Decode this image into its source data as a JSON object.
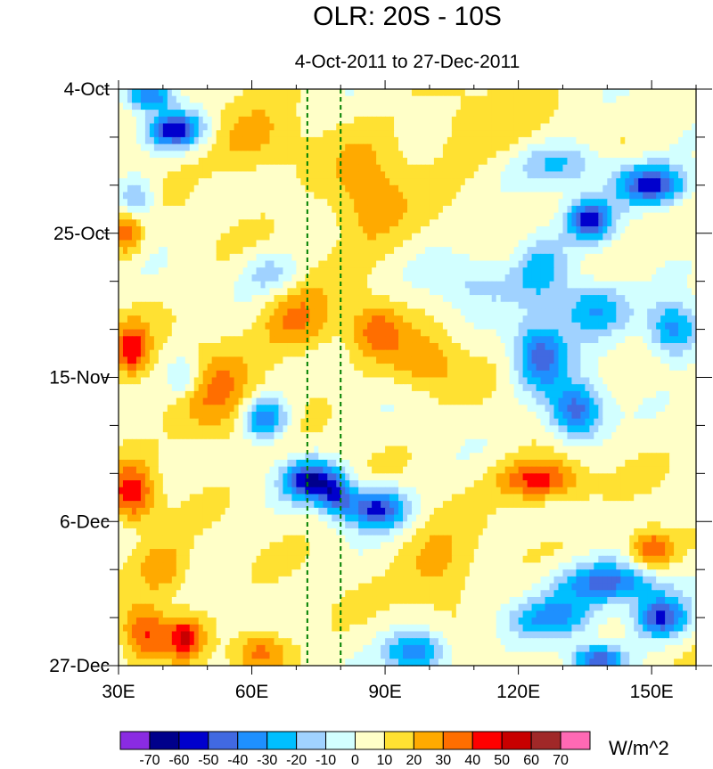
{
  "chart_data": {
    "type": "heatmap",
    "title": "OLR: 20S - 10S",
    "subtitle": "4-Oct-2011 to 27-Dec-2011",
    "xlabel": "",
    "ylabel": "",
    "x_range": [
      30,
      160
    ],
    "x_ticks": [
      {
        "value": 30,
        "label": "30E"
      },
      {
        "value": 60,
        "label": "60E"
      },
      {
        "value": 90,
        "label": "90E"
      },
      {
        "value": 120,
        "label": "120E"
      },
      {
        "value": 150,
        "label": "150E"
      }
    ],
    "y_range_days": [
      0,
      84
    ],
    "y_ticks": [
      {
        "day": 0,
        "label": "4-Oct"
      },
      {
        "day": 21,
        "label": "25-Oct"
      },
      {
        "day": 42,
        "label": "15-Nov"
      },
      {
        "day": 63,
        "label": "6-Dec"
      },
      {
        "day": 84,
        "label": "27-Dec"
      }
    ],
    "reference_lines_lon": [
      72.5,
      80
    ],
    "colorbar": {
      "units": "W/m^2",
      "levels": [
        -70,
        -60,
        -50,
        -40,
        -30,
        -20,
        -10,
        0,
        10,
        20,
        30,
        40,
        50,
        60,
        70
      ],
      "colors": [
        "#8a2be2",
        "#00008b",
        "#0000cd",
        "#4169e1",
        "#1e90ff",
        "#00bfff",
        "#a0d2ff",
        "#d2ffff",
        "#ffffc8",
        "#ffe132",
        "#ffaa00",
        "#ff6e00",
        "#ff0000",
        "#c80000",
        "#a02828",
        "#ff69b4"
      ]
    },
    "features": [
      {
        "lon": 43,
        "day": 6,
        "amp": -62,
        "sx": 6,
        "sy": 2.5
      },
      {
        "lon": 37,
        "day": 1,
        "amp": -48,
        "sx": 5,
        "sy": 2
      },
      {
        "lon": 34,
        "day": 16,
        "amp": -28,
        "sx": 4,
        "sy": 3
      },
      {
        "lon": 32,
        "day": 21,
        "amp": 32,
        "sx": 3,
        "sy": 3
      },
      {
        "lon": 33,
        "day": 38,
        "amp": 38,
        "sx": 4,
        "sy": 4
      },
      {
        "lon": 52,
        "day": 45,
        "amp": 24,
        "sx": 9,
        "sy": 7
      },
      {
        "lon": 45,
        "day": 42,
        "amp": -25,
        "sx": 4,
        "sy": 3
      },
      {
        "lon": 63,
        "day": 48,
        "amp": -52,
        "sx": 5,
        "sy": 3
      },
      {
        "lon": 73,
        "day": 57,
        "amp": -62,
        "sx": 6,
        "sy": 3
      },
      {
        "lon": 88,
        "day": 61,
        "amp": -58,
        "sx": 7,
        "sy": 3
      },
      {
        "lon": 79,
        "day": 59,
        "amp": -42,
        "sx": 4,
        "sy": 3
      },
      {
        "lon": 33,
        "day": 59,
        "amp": 42,
        "sx": 5,
        "sy": 4
      },
      {
        "lon": 40,
        "day": 70,
        "amp": 24,
        "sx": 6,
        "sy": 4
      },
      {
        "lon": 36,
        "day": 79,
        "amp": 34,
        "sx": 5,
        "sy": 4
      },
      {
        "lon": 45,
        "day": 80,
        "amp": 40,
        "sx": 4,
        "sy": 3
      },
      {
        "lon": 62,
        "day": 82,
        "amp": 30,
        "sx": 6,
        "sy": 3
      },
      {
        "lon": 70,
        "day": 34,
        "amp": 26,
        "sx": 8,
        "sy": 5
      },
      {
        "lon": 86,
        "day": 16,
        "amp": 22,
        "sx": 9,
        "sy": 8
      },
      {
        "lon": 88,
        "day": 35,
        "amp": 28,
        "sx": 6,
        "sy": 4
      },
      {
        "lon": 99,
        "day": 40,
        "amp": 22,
        "sx": 8,
        "sy": 4
      },
      {
        "lon": 102,
        "day": 70,
        "amp": 20,
        "sx": 8,
        "sy": 6
      },
      {
        "lon": 97,
        "day": 82,
        "amp": -48,
        "sx": 7,
        "sy": 3
      },
      {
        "lon": 125,
        "day": 57,
        "amp": 42,
        "sx": 9,
        "sy": 3
      },
      {
        "lon": 150,
        "day": 67,
        "amp": 38,
        "sx": 5,
        "sy": 3
      },
      {
        "lon": 150,
        "day": 14,
        "amp": -62,
        "sx": 8,
        "sy": 3
      },
      {
        "lon": 130,
        "day": 11,
        "amp": -28,
        "sx": 10,
        "sy": 3
      },
      {
        "lon": 136,
        "day": 19,
        "amp": -58,
        "sx": 5,
        "sy": 3
      },
      {
        "lon": 125,
        "day": 26,
        "amp": -32,
        "sx": 6,
        "sy": 5
      },
      {
        "lon": 137,
        "day": 32,
        "amp": -40,
        "sx": 8,
        "sy": 4
      },
      {
        "lon": 125,
        "day": 39,
        "amp": -50,
        "sx": 6,
        "sy": 5
      },
      {
        "lon": 133,
        "day": 47,
        "amp": -55,
        "sx": 6,
        "sy": 4
      },
      {
        "lon": 155,
        "day": 35,
        "amp": -45,
        "sx": 6,
        "sy": 4
      },
      {
        "lon": 140,
        "day": 72,
        "amp": -50,
        "sx": 12,
        "sy": 3
      },
      {
        "lon": 152,
        "day": 77,
        "amp": -58,
        "sx": 6,
        "sy": 3
      },
      {
        "lon": 128,
        "day": 77,
        "amp": -38,
        "sx": 10,
        "sy": 3
      },
      {
        "lon": 138,
        "day": 83,
        "amp": -50,
        "sx": 6,
        "sy": 2
      },
      {
        "lon": 64,
        "day": 27,
        "amp": -22,
        "sx": 6,
        "sy": 3
      },
      {
        "lon": 110,
        "day": 28,
        "amp": -18,
        "sx": 10,
        "sy": 4
      },
      {
        "lon": 60,
        "day": 8,
        "amp": 18,
        "sx": 10,
        "sy": 5
      },
      {
        "lon": 110,
        "day": 6,
        "amp": 12,
        "sx": 12,
        "sy": 6
      }
    ]
  }
}
